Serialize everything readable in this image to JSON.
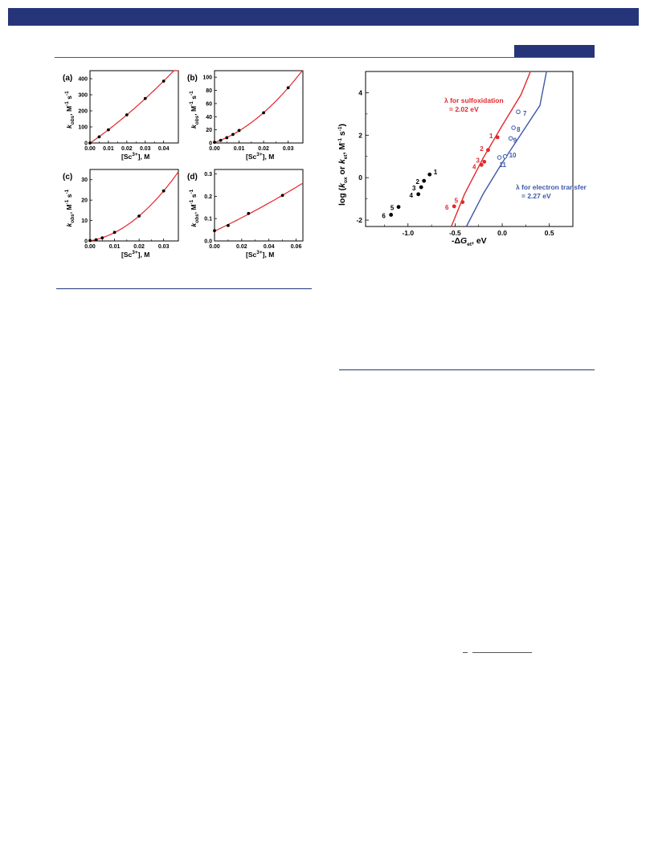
{
  "chart_data": [
    {
      "panel": "(a)",
      "type": "scatter",
      "x": [
        0.0,
        0.005,
        0.01,
        0.02,
        0.03,
        0.04
      ],
      "y": [
        0,
        38,
        82,
        175,
        277,
        385
      ],
      "xlabel": "[Sc3+], M",
      "ylabel": "kobs, M-1 s-1",
      "xlim": [
        0,
        0.048
      ],
      "ylim": [
        0,
        450
      ],
      "xticks": [
        "0.00",
        "0.01",
        "0.02",
        "0.03",
        "0.04"
      ],
      "yticks": [
        "0",
        "100",
        "200",
        "300",
        "400"
      ],
      "fit_color": "#e5262b",
      "point_color": "#000000"
    },
    {
      "panel": "(b)",
      "type": "scatter",
      "x": [
        0.0,
        0.0025,
        0.005,
        0.0075,
        0.01,
        0.02,
        0.03
      ],
      "y": [
        1,
        4,
        8,
        13,
        19,
        46,
        84
      ],
      "xlabel": "[Sc3+], M",
      "ylabel": "kobs, M-1 s-1",
      "xlim": [
        0,
        0.036
      ],
      "ylim": [
        0,
        110
      ],
      "xticks": [
        "0.00",
        "0.01",
        "0.02",
        "0.03"
      ],
      "yticks": [
        "0",
        "20",
        "40",
        "60",
        "80",
        "100"
      ],
      "fit_color": "#e5262b",
      "point_color": "#000000"
    },
    {
      "panel": "(c)",
      "type": "scatter",
      "x": [
        0.0,
        0.0025,
        0.005,
        0.01,
        0.02,
        0.03
      ],
      "y": [
        0.2,
        0.6,
        1.5,
        4.2,
        12.2,
        24.5
      ],
      "xlabel": "[Sc3+], M",
      "ylabel": "kobs, M-1 s-1",
      "xlim": [
        0,
        0.036
      ],
      "ylim": [
        0,
        35
      ],
      "xticks": [
        "0.00",
        "0.01",
        "0.02",
        "0.03"
      ],
      "yticks": [
        "0",
        "10",
        "20",
        "30"
      ],
      "fit_color": "#e5262b",
      "point_color": "#000000"
    },
    {
      "panel": "(d)",
      "type": "scatter",
      "x": [
        0.0,
        0.01,
        0.025,
        0.05
      ],
      "y": [
        0.046,
        0.069,
        0.123,
        0.204
      ],
      "xlabel": "[Sc3+], M",
      "ylabel": "kobs, M-1 s-1",
      "xlim": [
        0,
        0.065
      ],
      "ylim": [
        0,
        0.32
      ],
      "xticks": [
        "0.00",
        "0.02",
        "0.04",
        "0.06"
      ],
      "yticks": [
        "0.0",
        "0.1",
        "0.2",
        "0.3"
      ],
      "fit_color": "#e5262b",
      "point_color": "#000000"
    },
    {
      "type": "scatter",
      "xlabel": "-ΔGet, eV",
      "ylabel": "log (kox or ket, M-1 s-1)",
      "xlim": [
        -1.45,
        0.75
      ],
      "ylim": [
        -2.3,
        5.0
      ],
      "xticks": [
        "-1.0",
        "-0.5",
        "0.0",
        "0.5"
      ],
      "yticks": [
        "-2",
        "0",
        "2",
        "4"
      ],
      "series": [
        {
          "color": "#000000",
          "marker": "filled",
          "points": [
            {
              "label": "1",
              "x": -0.77,
              "y": 0.15
            },
            {
              "label": "2",
              "x": -0.83,
              "y": -0.15
            },
            {
              "label": "3",
              "x": -0.86,
              "y": -0.45
            },
            {
              "label": "4",
              "x": -0.89,
              "y": -0.78
            },
            {
              "label": "5",
              "x": -1.1,
              "y": -1.38
            },
            {
              "label": "6",
              "x": -1.18,
              "y": -1.75
            }
          ]
        },
        {
          "color": "#e5262b",
          "marker": "filled",
          "points": [
            {
              "label": "1",
              "x": -0.05,
              "y": 1.9
            },
            {
              "label": "2",
              "x": -0.15,
              "y": 1.3
            },
            {
              "label": "3",
              "x": -0.19,
              "y": 0.75
            },
            {
              "label": "4",
              "x": -0.22,
              "y": 0.6
            },
            {
              "label": "5",
              "x": -0.42,
              "y": -1.15
            },
            {
              "label": "6",
              "x": -0.51,
              "y": -1.35
            }
          ]
        },
        {
          "color": "#3c58a8",
          "marker": "open",
          "points": [
            {
              "label": "7",
              "x": 0.17,
              "y": 3.1
            },
            {
              "label": "8",
              "x": 0.12,
              "y": 2.35
            },
            {
              "label": "9",
              "x": 0.09,
              "y": 1.85
            },
            {
              "label": "10",
              "x": 0.03,
              "y": 1.0
            },
            {
              "label": "11",
              "x": -0.03,
              "y": 0.95
            }
          ]
        }
      ],
      "curves": [
        {
          "color": "#e5262b",
          "x": [
            -0.54,
            -0.4,
            -0.2,
            0.0,
            0.2,
            0.3
          ],
          "y": [
            -2.3,
            -0.78,
            0.94,
            2.45,
            3.91,
            5.0
          ]
        },
        {
          "color": "#3c58a8",
          "x": [
            -0.38,
            -0.2,
            0.0,
            0.2,
            0.4,
            0.47
          ],
          "y": [
            -2.3,
            -0.75,
            0.7,
            2.05,
            3.4,
            5.0
          ]
        }
      ],
      "annotations": {
        "red_line1": "λ for sulfoxidation",
        "red_line2": "= 2.02 eV",
        "blue_line1": "λ for electron transfer",
        "blue_line2": "= 2.27 eV"
      }
    }
  ]
}
